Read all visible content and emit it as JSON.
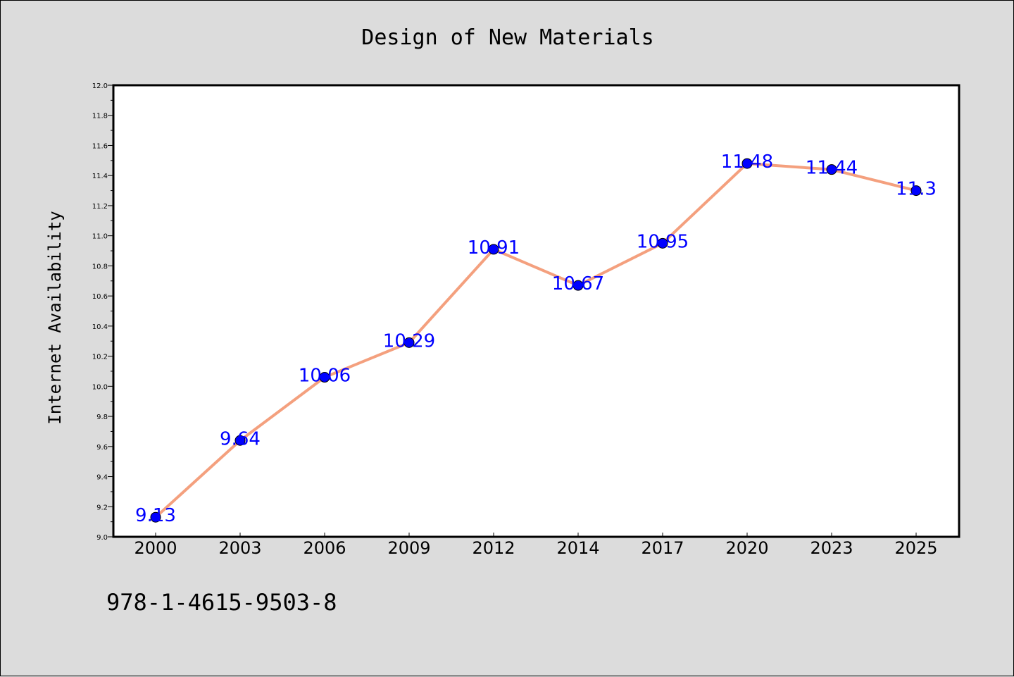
{
  "chart_data": {
    "type": "line",
    "title": "Design of New Materials",
    "xlabel": "",
    "ylabel": "Internet Availability",
    "categories": [
      "2000",
      "2003",
      "2006",
      "2009",
      "2012",
      "2014",
      "2017",
      "2020",
      "2023",
      "2025"
    ],
    "series": [
      {
        "values": [
          9.13,
          9.64,
          10.06,
          10.29,
          10.91,
          10.67,
          10.95,
          11.48,
          11.44,
          11.3
        ],
        "data_labels": [
          "9.13",
          "9.64",
          "10.06",
          "10.29",
          "10.91",
          "10.67",
          "10.95",
          "11.48",
          "11.44",
          "11.3"
        ],
        "line_color": "#f4a07e",
        "marker_color": "#0000ff"
      }
    ],
    "ylim": [
      9.0,
      12.0
    ],
    "yticks": [
      "9.0",
      "9.2",
      "9.4",
      "9.6",
      "9.8",
      "10.0",
      "10.2",
      "10.4",
      "10.6",
      "10.8",
      "11.0",
      "11.2",
      "11.4",
      "11.6",
      "11.8",
      "12.0"
    ],
    "grid": false,
    "legend": "none"
  },
  "annotation": "978-1-4615-9503-8",
  "colors": {
    "figure_background": "#dcdcdc",
    "plot_background": "#ffffff",
    "label_color": "#0000ff"
  }
}
